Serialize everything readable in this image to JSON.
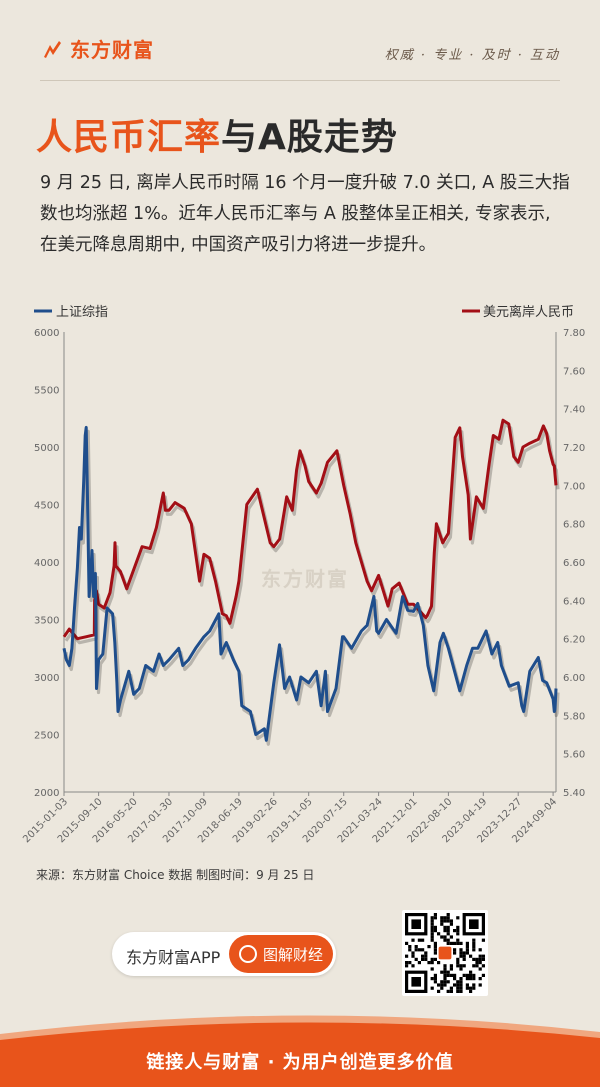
{
  "header": {
    "brand": "东方财富",
    "slogan": "权威 · 专业 · 及时 · 互动"
  },
  "title": {
    "part1": "人民币汇率",
    "part2": "与A股走势"
  },
  "intro": "9 月 25 日, 离岸人民币时隔 16 个月一度升破 7.0 关口, A 股三大指数也均涨超 1%。近年人民币汇率与 A 股整体呈正相关, 专家表示, 在美元降息周期中, 中国资产吸引力将进一步提升。",
  "chart_data": {
    "type": "line",
    "x_tick_labels": [
      "2015-01-03",
      "2015-09-10",
      "2016-05-20",
      "2017-01-30",
      "2017-10-09",
      "2018-06-19",
      "2019-02-26",
      "2019-11-05",
      "2020-07-15",
      "2021-03-24",
      "2021-12-01",
      "2022-08-10",
      "2023-04-19",
      "2023-12-27",
      "2024-09-04"
    ],
    "y_left": {
      "ylim": [
        2000,
        6000
      ],
      "ticks": [
        "2000",
        "2500",
        "3000",
        "3500",
        "4000",
        "4500",
        "5000",
        "5500",
        "6000"
      ]
    },
    "y_right": {
      "ylim": [
        5.4,
        7.8
      ],
      "ticks": [
        "5.40",
        "5.60",
        "5.80",
        "6.00",
        "6.20",
        "6.40",
        "6.60",
        "6.80",
        "7.00",
        "7.20",
        "7.40",
        "7.60",
        "7.80"
      ]
    },
    "series": [
      {
        "name": "上证综指",
        "axis": "left",
        "color": "#1f4e8c",
        "points": [
          [
            "2015-01-03",
            3250
          ],
          [
            "2015-01-20",
            3150
          ],
          [
            "2015-02-10",
            3100
          ],
          [
            "2015-03-01",
            3250
          ],
          [
            "2015-03-20",
            3600
          ],
          [
            "2015-04-10",
            3950
          ],
          [
            "2015-04-25",
            4300
          ],
          [
            "2015-05-08",
            4200
          ],
          [
            "2015-05-25",
            4700
          ],
          [
            "2015-06-05",
            5100
          ],
          [
            "2015-06-12",
            5170
          ],
          [
            "2015-06-22",
            4550
          ],
          [
            "2015-07-03",
            3700
          ],
          [
            "2015-07-15",
            3900
          ],
          [
            "2015-07-24",
            4100
          ],
          [
            "2015-08-05",
            3700
          ],
          [
            "2015-08-18",
            3900
          ],
          [
            "2015-08-26",
            2900
          ],
          [
            "2015-09-10",
            3150
          ],
          [
            "2015-10-10",
            3200
          ],
          [
            "2015-11-10",
            3600
          ],
          [
            "2015-12-20",
            3550
          ],
          [
            "2016-01-05",
            3300
          ],
          [
            "2016-01-20",
            2950
          ],
          [
            "2016-01-28",
            2700
          ],
          [
            "2016-02-15",
            2800
          ],
          [
            "2016-03-10",
            2900
          ],
          [
            "2016-04-15",
            3050
          ],
          [
            "2016-05-20",
            2850
          ],
          [
            "2016-06-30",
            2900
          ],
          [
            "2016-08-15",
            3100
          ],
          [
            "2016-10-10",
            3050
          ],
          [
            "2016-11-20",
            3200
          ],
          [
            "2016-12-20",
            3100
          ],
          [
            "2017-01-30",
            3150
          ],
          [
            "2017-04-10",
            3250
          ],
          [
            "2017-05-10",
            3100
          ],
          [
            "2017-06-20",
            3150
          ],
          [
            "2017-08-10",
            3250
          ],
          [
            "2017-10-09",
            3350
          ],
          [
            "2017-11-20",
            3400
          ],
          [
            "2018-01-25",
            3550
          ],
          [
            "2018-02-10",
            3200
          ],
          [
            "2018-03-20",
            3300
          ],
          [
            "2018-05-10",
            3150
          ],
          [
            "2018-06-19",
            3050
          ],
          [
            "2018-07-10",
            2750
          ],
          [
            "2018-09-10",
            2700
          ],
          [
            "2018-10-19",
            2500
          ],
          [
            "2018-12-20",
            2550
          ],
          [
            "2019-01-03",
            2450
          ],
          [
            "2019-02-26",
            2950
          ],
          [
            "2019-04-08",
            3280
          ],
          [
            "2019-05-15",
            2900
          ],
          [
            "2019-06-20",
            3000
          ],
          [
            "2019-08-10",
            2800
          ],
          [
            "2019-09-10",
            3000
          ],
          [
            "2019-11-05",
            2950
          ],
          [
            "2019-12-31",
            3050
          ],
          [
            "2020-02-03",
            2750
          ],
          [
            "2020-03-05",
            3050
          ],
          [
            "2020-03-20",
            2700
          ],
          [
            "2020-05-20",
            2900
          ],
          [
            "2020-07-06",
            3350
          ],
          [
            "2020-07-15",
            3350
          ],
          [
            "2020-09-10",
            3250
          ],
          [
            "2020-11-20",
            3400
          ],
          [
            "2020-12-31",
            3450
          ],
          [
            "2021-02-18",
            3700
          ],
          [
            "2021-03-10",
            3400
          ],
          [
            "2021-03-24",
            3380
          ],
          [
            "2021-05-20",
            3500
          ],
          [
            "2021-07-28",
            3380
          ],
          [
            "2021-09-13",
            3700
          ],
          [
            "2021-10-20",
            3580
          ],
          [
            "2021-12-01",
            3570
          ],
          [
            "2021-12-31",
            3640
          ],
          [
            "2022-02-10",
            3450
          ],
          [
            "2022-03-15",
            3100
          ],
          [
            "2022-04-26",
            2880
          ],
          [
            "2022-06-10",
            3300
          ],
          [
            "2022-07-05",
            3380
          ],
          [
            "2022-08-10",
            3250
          ],
          [
            "2022-10-31",
            2880
          ],
          [
            "2022-12-20",
            3100
          ],
          [
            "2023-01-31",
            3250
          ],
          [
            "2023-03-10",
            3250
          ],
          [
            "2023-04-19",
            3350
          ],
          [
            "2023-05-09",
            3400
          ],
          [
            "2023-06-20",
            3200
          ],
          [
            "2023-08-01",
            3300
          ],
          [
            "2023-08-28",
            3100
          ],
          [
            "2023-10-23",
            2920
          ],
          [
            "2023-12-27",
            2950
          ],
          [
            "2024-01-22",
            2750
          ],
          [
            "2024-02-05",
            2700
          ],
          [
            "2024-03-20",
            3050
          ],
          [
            "2024-05-20",
            3170
          ],
          [
            "2024-06-20",
            2970
          ],
          [
            "2024-07-20",
            2950
          ],
          [
            "2024-09-04",
            2810
          ],
          [
            "2024-09-13",
            2700
          ],
          [
            "2024-09-18",
            2720
          ],
          [
            "2024-09-25",
            2900
          ]
        ]
      },
      {
        "name": "美元离岸人民币",
        "axis": "right",
        "color": "#a30f16",
        "points": [
          [
            "2015-01-03",
            6.21
          ],
          [
            "2015-02-10",
            6.25
          ],
          [
            "2015-04-10",
            6.2
          ],
          [
            "2015-06-10",
            6.21
          ],
          [
            "2015-08-10",
            6.22
          ],
          [
            "2015-08-12",
            6.4
          ],
          [
            "2015-08-25",
            6.45
          ],
          [
            "2015-09-10",
            6.38
          ],
          [
            "2015-10-20",
            6.36
          ],
          [
            "2015-12-01",
            6.44
          ],
          [
            "2015-12-31",
            6.58
          ],
          [
            "2016-01-06",
            6.7
          ],
          [
            "2016-01-12",
            6.58
          ],
          [
            "2016-02-15",
            6.55
          ],
          [
            "2016-03-31",
            6.46
          ],
          [
            "2016-05-20",
            6.56
          ],
          [
            "2016-07-20",
            6.68
          ],
          [
            "2016-09-15",
            6.67
          ],
          [
            "2016-10-31",
            6.78
          ],
          [
            "2016-12-20",
            6.96
          ],
          [
            "2017-01-04",
            6.87
          ],
          [
            "2017-01-30",
            6.87
          ],
          [
            "2017-03-15",
            6.91
          ],
          [
            "2017-05-20",
            6.88
          ],
          [
            "2017-07-10",
            6.8
          ],
          [
            "2017-09-08",
            6.5
          ],
          [
            "2017-10-09",
            6.64
          ],
          [
            "2017-11-20",
            6.62
          ],
          [
            "2018-01-01",
            6.5
          ],
          [
            "2018-02-20",
            6.33
          ],
          [
            "2018-03-20",
            6.32
          ],
          [
            "2018-04-15",
            6.28
          ],
          [
            "2018-05-30",
            6.42
          ],
          [
            "2018-06-19",
            6.5
          ],
          [
            "2018-08-15",
            6.9
          ],
          [
            "2018-10-31",
            6.98
          ],
          [
            "2019-01-31",
            6.7
          ],
          [
            "2019-02-26",
            6.68
          ],
          [
            "2019-04-10",
            6.72
          ],
          [
            "2019-05-30",
            6.94
          ],
          [
            "2019-07-10",
            6.87
          ],
          [
            "2019-08-10",
            7.08
          ],
          [
            "2019-09-03",
            7.18
          ],
          [
            "2019-10-10",
            7.1
          ],
          [
            "2019-11-05",
            7.02
          ],
          [
            "2019-12-31",
            6.96
          ],
          [
            "2020-02-03",
            7.01
          ],
          [
            "2020-03-20",
            7.12
          ],
          [
            "2020-05-27",
            7.18
          ],
          [
            "2020-07-15",
            7.0
          ],
          [
            "2020-08-31",
            6.85
          ],
          [
            "2020-10-10",
            6.7
          ],
          [
            "2020-12-31",
            6.5
          ],
          [
            "2021-02-01",
            6.45
          ],
          [
            "2021-03-24",
            6.53
          ],
          [
            "2021-05-31",
            6.37
          ],
          [
            "2021-06-30",
            6.46
          ],
          [
            "2021-08-20",
            6.49
          ],
          [
            "2021-10-20",
            6.38
          ],
          [
            "2021-12-01",
            6.38
          ],
          [
            "2022-02-28",
            6.31
          ],
          [
            "2022-03-10",
            6.32
          ],
          [
            "2022-04-10",
            6.37
          ],
          [
            "2022-04-30",
            6.65
          ],
          [
            "2022-05-15",
            6.8
          ],
          [
            "2022-06-30",
            6.7
          ],
          [
            "2022-08-10",
            6.75
          ],
          [
            "2022-09-28",
            7.25
          ],
          [
            "2022-10-31",
            7.3
          ],
          [
            "2022-11-20",
            7.15
          ],
          [
            "2022-12-31",
            6.95
          ],
          [
            "2023-01-16",
            6.72
          ],
          [
            "2023-02-28",
            6.94
          ],
          [
            "2023-04-19",
            6.88
          ],
          [
            "2023-05-31",
            7.11
          ],
          [
            "2023-06-30",
            7.26
          ],
          [
            "2023-08-10",
            7.24
          ],
          [
            "2023-09-08",
            7.34
          ],
          [
            "2023-10-20",
            7.32
          ],
          [
            "2023-11-25",
            7.15
          ],
          [
            "2023-12-27",
            7.12
          ],
          [
            "2024-01-31",
            7.2
          ],
          [
            "2024-03-20",
            7.22
          ],
          [
            "2024-05-20",
            7.24
          ],
          [
            "2024-06-26",
            7.31
          ],
          [
            "2024-07-20",
            7.27
          ],
          [
            "2024-08-10",
            7.18
          ],
          [
            "2024-09-04",
            7.11
          ],
          [
            "2024-09-13",
            7.1
          ],
          [
            "2024-09-20",
            7.04
          ],
          [
            "2024-09-25",
            7.0
          ]
        ]
      }
    ],
    "annotations": [
      "东方财富"
    ]
  },
  "source": "来源：东方财富 Choice 数据    制图时间：9 月 25 日",
  "app": {
    "name": "东方财富APP",
    "button": "图解财经"
  },
  "footer": "链接人与财富 · 为用户创造更多价值",
  "colors": {
    "brand": "#e8541b",
    "sh_index": "#1f4e8c",
    "cnh": "#a30f16"
  }
}
